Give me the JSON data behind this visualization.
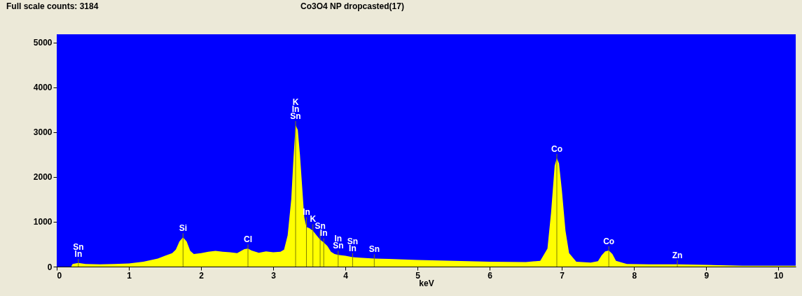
{
  "chart_data": {
    "type": "area",
    "title": "Co3O4 NP dropcasted(17)",
    "xlabel": "keV",
    "x": [
      0,
      0.2,
      0.22,
      0.3,
      0.4,
      0.6,
      0.8,
      1.0,
      1.2,
      1.4,
      1.5,
      1.6,
      1.65,
      1.7,
      1.75,
      1.8,
      1.85,
      1.9,
      2.0,
      2.1,
      2.2,
      2.3,
      2.4,
      2.5,
      2.6,
      2.65,
      2.7,
      2.8,
      2.9,
      3.0,
      3.1,
      3.15,
      3.2,
      3.25,
      3.28,
      3.31,
      3.34,
      3.37,
      3.4,
      3.43,
      3.46,
      3.5,
      3.55,
      3.6,
      3.65,
      3.7,
      3.75,
      3.8,
      3.85,
      3.9,
      4.0,
      4.1,
      4.2,
      4.4,
      4.6,
      4.8,
      5.0,
      5.5,
      6.0,
      6.5,
      6.7,
      6.8,
      6.85,
      6.9,
      6.93,
      6.96,
      7.0,
      7.05,
      7.1,
      7.2,
      7.4,
      7.5,
      7.55,
      7.6,
      7.65,
      7.7,
      7.75,
      7.9,
      8.2,
      8.6,
      9.0,
      9.5,
      10.0,
      10.24
    ],
    "series": [
      {
        "color": "#ffff00",
        "values": [
          0,
          0,
          60,
          80,
          60,
          50,
          60,
          70,
          110,
          180,
          240,
          300,
          380,
          560,
          650,
          560,
          350,
          280,
          300,
          330,
          350,
          330,
          320,
          300,
          390,
          400,
          360,
          310,
          340,
          320,
          330,
          380,
          700,
          1500,
          2400,
          3150,
          3050,
          2500,
          1800,
          1100,
          880,
          860,
          800,
          700,
          600,
          540,
          460,
          330,
          280,
          260,
          240,
          210,
          200,
          180,
          170,
          160,
          150,
          130,
          110,
          100,
          130,
          400,
          1200,
          2250,
          2420,
          2300,
          1700,
          800,
          300,
          110,
          90,
          120,
          250,
          340,
          360,
          280,
          130,
          60,
          50,
          50,
          40,
          20,
          20,
          20
        ]
      }
    ],
    "xlim": [
      0,
      10.24
    ],
    "xticks": [
      0,
      1,
      2,
      3,
      4,
      5,
      6,
      7,
      8,
      9,
      10
    ],
    "ylim": [
      0,
      5180
    ],
    "yticks": [
      0,
      1000,
      2000,
      3000,
      4000,
      5000
    ],
    "annotations": [
      "Full scale counts: 3184",
      {
        "text": "Sn",
        "x": 0.3,
        "y": 80
      },
      {
        "text": "In",
        "x": 0.3,
        "y": 80
      },
      {
        "text": "Si",
        "x": 1.75,
        "y": 650
      },
      {
        "text": "Cl",
        "x": 2.65,
        "y": 400
      },
      {
        "text": "K",
        "x": 3.31,
        "y": 3150
      },
      {
        "text": "In",
        "x": 3.31,
        "y": 3150
      },
      {
        "text": "Sn",
        "x": 3.31,
        "y": 3150
      },
      {
        "text": "In",
        "x": 3.46,
        "y": 880
      },
      {
        "text": "K",
        "x": 3.55,
        "y": 800
      },
      {
        "text": "Sn",
        "x": 3.65,
        "y": 600
      },
      {
        "text": "In",
        "x": 3.7,
        "y": 540
      },
      {
        "text": "In",
        "x": 3.9,
        "y": 260
      },
      {
        "text": "Sn",
        "x": 3.9,
        "y": 260
      },
      {
        "text": "Sn",
        "x": 4.1,
        "y": 210
      },
      {
        "text": "In",
        "x": 4.1,
        "y": 210
      },
      {
        "text": "Sn",
        "x": 4.4,
        "y": 180
      },
      {
        "text": "Co",
        "x": 6.93,
        "y": 2420
      },
      {
        "text": "Co",
        "x": 7.65,
        "y": 360
      },
      {
        "text": "Zn",
        "x": 8.6,
        "y": 50
      }
    ]
  }
}
